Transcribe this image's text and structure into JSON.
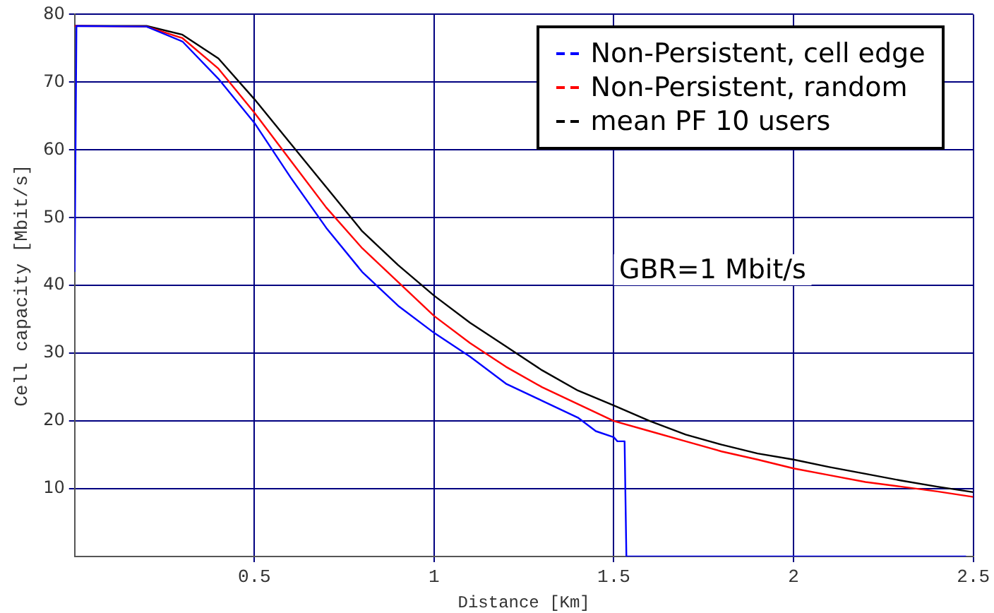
{
  "chart_data": {
    "type": "line",
    "xlabel": "Distance [Km]",
    "ylabel": "Cell capacity [Mbit/s]",
    "xlim": [
      0,
      2.5
    ],
    "ylim": [
      0,
      80
    ],
    "xticks": [
      0.5,
      1,
      1.5,
      2,
      2.5
    ],
    "yticks": [
      10,
      20,
      30,
      40,
      50,
      60,
      70,
      80
    ],
    "grid": true,
    "legend": "top right",
    "marker": "none",
    "line_style": "solid",
    "annotations": [
      "GBR=1 Mbit/s"
    ],
    "series": [
      {
        "name": "Non-Persistent, cell edge",
        "color": "#0000ff",
        "x": [
          0,
          0.005,
          0.2,
          0.3,
          0.4,
          0.5,
          0.6,
          0.7,
          0.8,
          0.9,
          1.0,
          1.1,
          1.2,
          1.3,
          1.4,
          1.45,
          1.5,
          1.51,
          1.53,
          1.535,
          2.48
        ],
        "values": [
          42,
          78.3,
          78.2,
          76,
          70.5,
          64,
          56,
          48.5,
          42,
          37,
          33,
          29.5,
          25.5,
          23,
          20.5,
          18.5,
          17.6,
          17,
          17,
          0,
          0
        ]
      },
      {
        "name": "Non-Persistent, random",
        "color": "#ff0000",
        "x": [
          0,
          0.2,
          0.3,
          0.4,
          0.5,
          0.6,
          0.7,
          0.8,
          0.9,
          1.0,
          1.1,
          1.2,
          1.3,
          1.4,
          1.5,
          1.6,
          1.7,
          1.8,
          1.9,
          2.0,
          2.1,
          2.2,
          2.3,
          2.4,
          2.5
        ],
        "values": [
          78.3,
          78.2,
          76.5,
          72,
          65.5,
          58.5,
          51.5,
          45.5,
          40.5,
          35.5,
          31.5,
          28,
          25,
          22.5,
          20,
          18.5,
          17,
          15.5,
          14.3,
          13,
          12,
          11,
          10.3,
          9.6,
          8.8
        ]
      },
      {
        "name": "mean PF 10 users",
        "color": "#000000",
        "x": [
          0,
          0.2,
          0.3,
          0.4,
          0.5,
          0.6,
          0.7,
          0.8,
          0.9,
          1.0,
          1.1,
          1.2,
          1.3,
          1.4,
          1.5,
          1.6,
          1.7,
          1.8,
          1.9,
          2.0,
          2.1,
          2.2,
          2.3,
          2.4,
          2.5
        ],
        "values": [
          78.3,
          78.3,
          77,
          73.5,
          67.5,
          61,
          54.5,
          48,
          43,
          38.5,
          34.5,
          31,
          27.5,
          24.5,
          22.3,
          20,
          18,
          16.5,
          15.2,
          14.3,
          13.2,
          12.2,
          11.2,
          10.3,
          9.5
        ]
      }
    ]
  }
}
